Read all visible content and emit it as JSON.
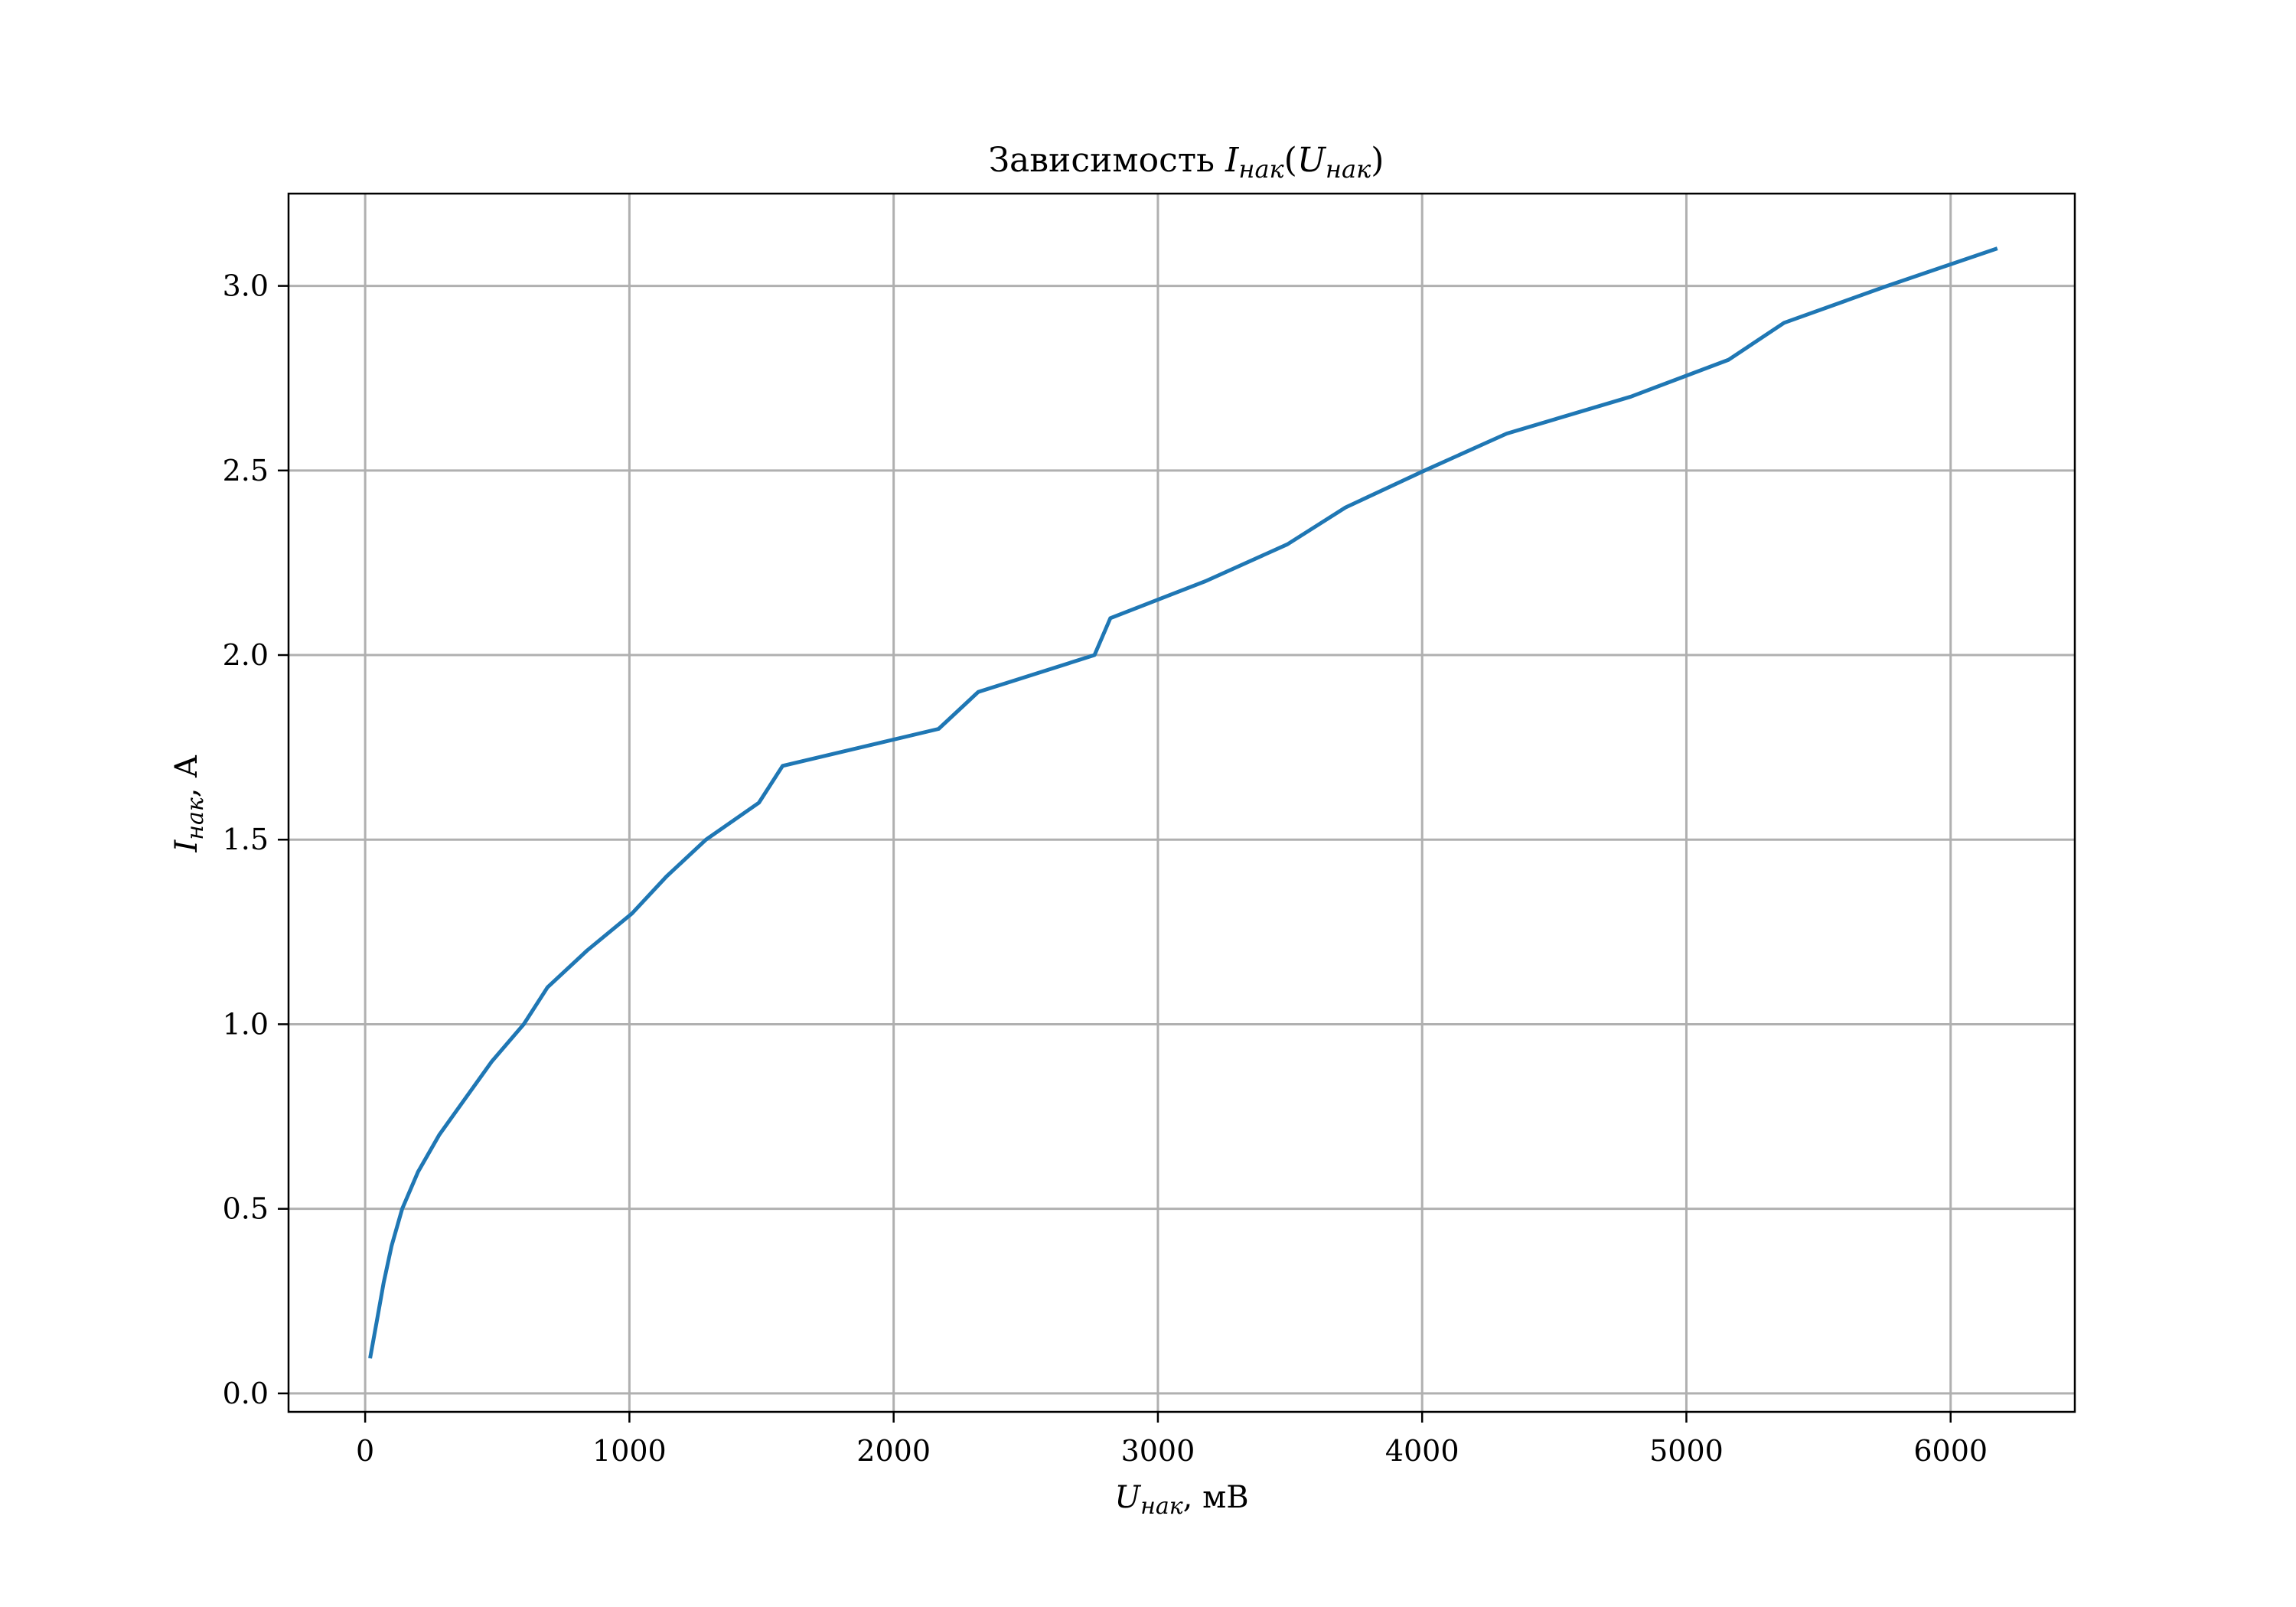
{
  "chart_data": {
    "type": "line",
    "title": {
      "prefix": "Зависимость ",
      "func_main": "I",
      "func_sub": "нак",
      "paren_open": "(",
      "arg_main": "U",
      "arg_sub": "нак",
      "paren_close": ")"
    },
    "xlabel": {
      "main": "U",
      "sub": "нак",
      "unit": ", мВ"
    },
    "ylabel": {
      "main": "I",
      "sub": "нак",
      "unit": ", А"
    },
    "xlim": [
      -290,
      6470
    ],
    "ylim": [
      -0.05,
      3.25
    ],
    "x_ticks": [
      0,
      1000,
      2000,
      3000,
      4000,
      5000,
      6000
    ],
    "x_tick_labels": [
      "0",
      "1000",
      "2000",
      "3000",
      "4000",
      "5000",
      "6000"
    ],
    "y_ticks": [
      0.0,
      0.5,
      1.0,
      1.5,
      2.0,
      2.5,
      3.0
    ],
    "y_tick_labels": [
      "0.0",
      "0.5",
      "1.0",
      "1.5",
      "2.0",
      "2.5",
      "3.0"
    ],
    "grid": true,
    "series": [
      {
        "color": "#1f77b4",
        "x": [
          20,
          45,
          70,
          100,
          140,
          200,
          280,
          380,
          480,
          600,
          690,
          840,
          1010,
          1140,
          1290,
          1490,
          1580,
          2170,
          2320,
          2760,
          2820,
          3180,
          3490,
          3710,
          4010,
          4320,
          4790,
          5160,
          5370,
          5760,
          6170
        ],
        "y": [
          0.1,
          0.2,
          0.3,
          0.4,
          0.5,
          0.6,
          0.7,
          0.8,
          0.9,
          1.0,
          1.1,
          1.2,
          1.3,
          1.4,
          1.5,
          1.6,
          1.7,
          1.8,
          1.9,
          2.0,
          2.1,
          2.2,
          2.3,
          2.4,
          2.5,
          2.6,
          2.7,
          2.8,
          2.9,
          3.0,
          3.1
        ]
      }
    ]
  }
}
